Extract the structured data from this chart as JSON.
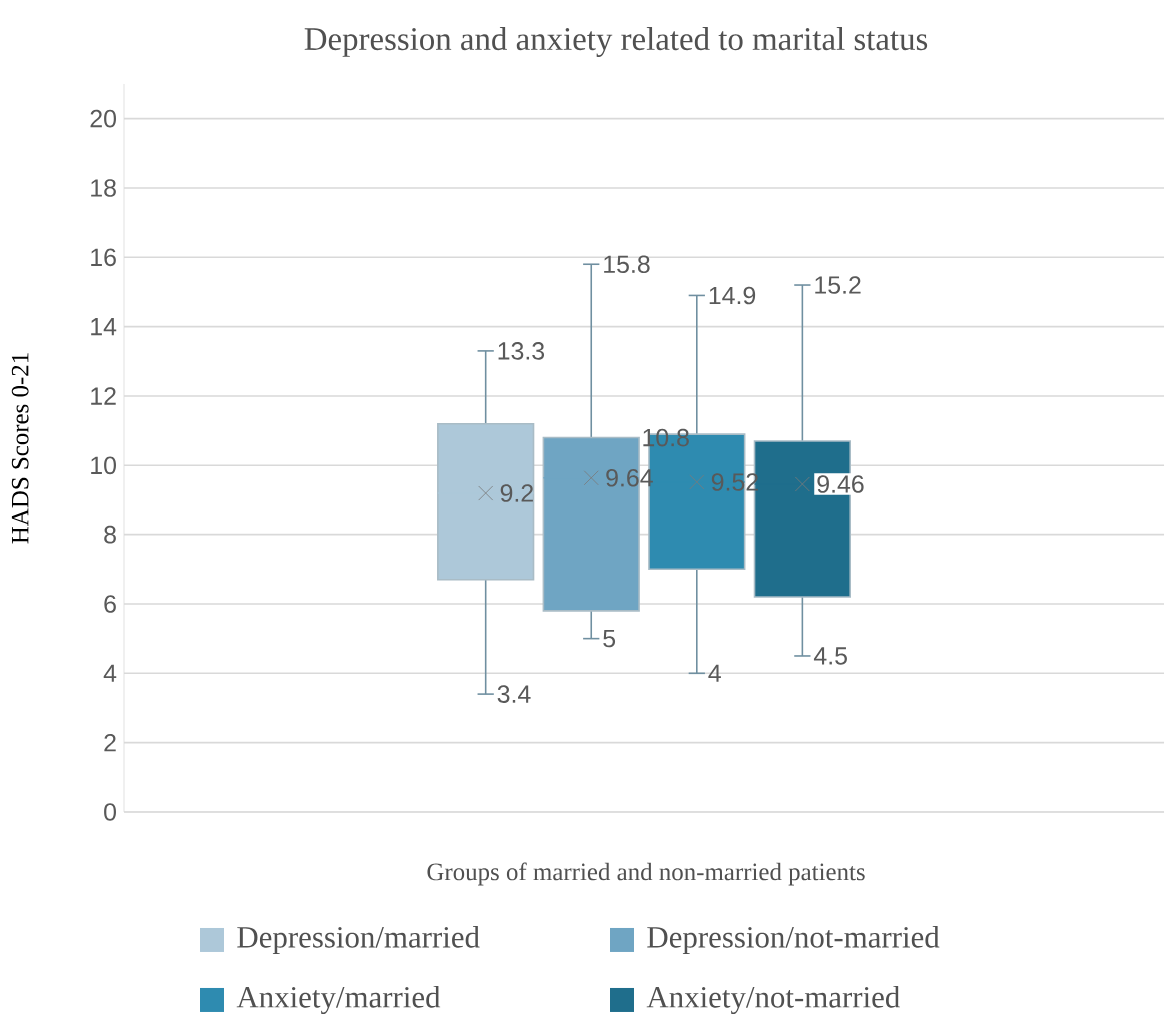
{
  "chart_data": {
    "type": "box",
    "title": "Depression and anxiety related to marital status",
    "xlabel": "Groups of married and non-married patients",
    "ylabel": "HADS Scores 0-21",
    "categories": [
      null
    ],
    "ylim": [
      0,
      21
    ],
    "yticks": [
      0,
      2,
      4,
      6,
      8,
      10,
      12,
      14,
      16,
      18,
      20
    ],
    "grid": "y",
    "legend": "bottom",
    "series": [
      {
        "name": "Depression/married",
        "color": "#adc8d9",
        "boxes": [
          {
            "low": 3.4,
            "q1": 6.7,
            "median": 9.2,
            "q3": 11.2,
            "high": 13.3,
            "mean": 9.2
          }
        ]
      },
      {
        "name": "Depression/not-married",
        "color": "#6fa5c3",
        "boxes": [
          {
            "low": 5,
            "q1": 5.8,
            "median": 9.64,
            "q3": 10.8,
            "high": 15.8,
            "mean": 9.64
          }
        ]
      },
      {
        "name": "Anxiety/married",
        "color": "#2e8bb0",
        "boxes": [
          {
            "low": 4,
            "q1": 7,
            "median": 9.52,
            "q3": 10.9,
            "high": 14.9,
            "mean": 9.52
          }
        ]
      },
      {
        "name": "Anxiety/not-married",
        "color": "#1f6e8c",
        "boxes": [
          {
            "low": 4.5,
            "q1": 6.2,
            "median": 9.46,
            "q3": 10.7,
            "high": 15.2,
            "mean": 9.46
          }
        ]
      }
    ],
    "annotations": [
      "13.3",
      "3.4",
      "9.2",
      "15.8",
      "5",
      "9.64",
      "10.8",
      "14.9",
      "4",
      "9.52",
      "15.2",
      "4.5",
      "9.46"
    ]
  }
}
